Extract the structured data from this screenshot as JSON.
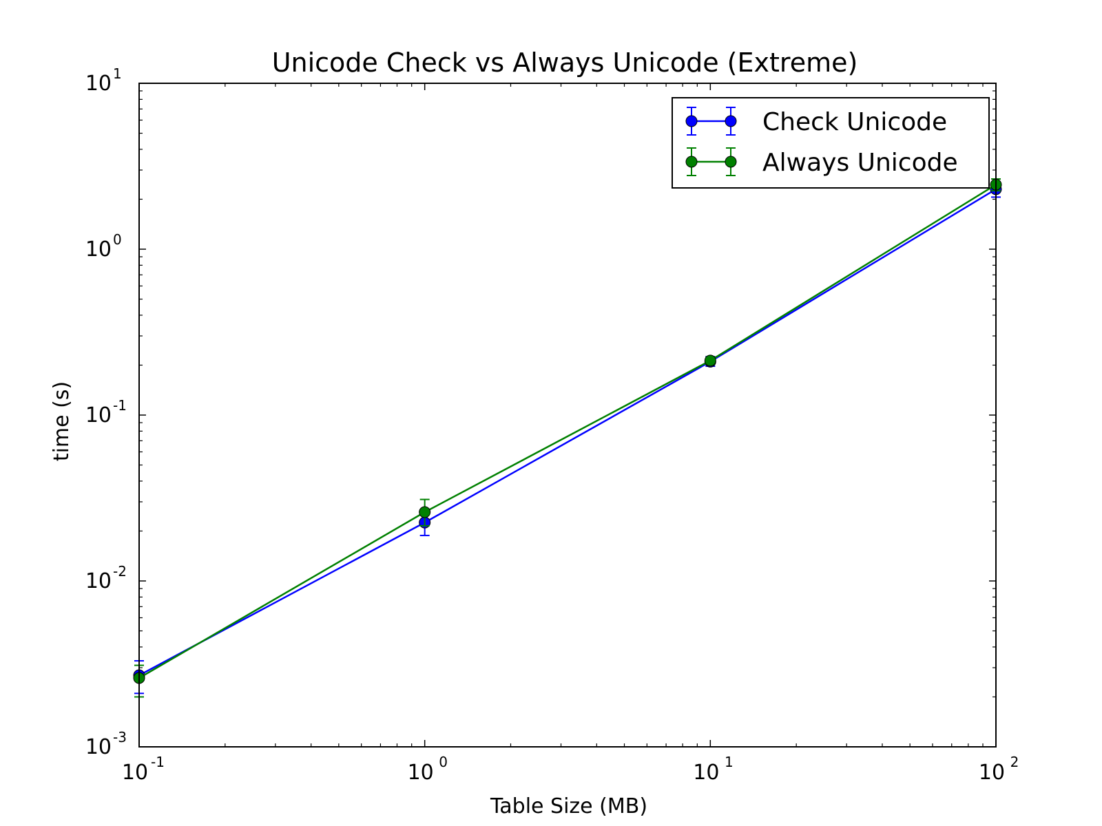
{
  "chart_data": {
    "type": "line",
    "title": "Unicode Check vs Always Unicode (Extreme)",
    "xlabel": "Table Size (MB)",
    "ylabel": "time (s)",
    "xscale": "log",
    "yscale": "log",
    "xlim": [
      0.1,
      100
    ],
    "ylim": [
      0.001,
      10
    ],
    "x_ticks": [
      {
        "value": 0.1,
        "base": "10",
        "exp": "-1"
      },
      {
        "value": 1,
        "base": "10",
        "exp": "0"
      },
      {
        "value": 10,
        "base": "10",
        "exp": "1"
      },
      {
        "value": 100,
        "base": "10",
        "exp": "2"
      }
    ],
    "y_ticks": [
      {
        "value": 0.001,
        "base": "10",
        "exp": "-3"
      },
      {
        "value": 0.01,
        "base": "10",
        "exp": "-2"
      },
      {
        "value": 0.1,
        "base": "10",
        "exp": "-1"
      },
      {
        "value": 1,
        "base": "10",
        "exp": "0"
      },
      {
        "value": 10,
        "base": "10",
        "exp": "1"
      }
    ],
    "grid": false,
    "legend_position": "upper-right",
    "series": [
      {
        "name": "Check Unicode",
        "color": "#0000ff",
        "x": [
          0.1,
          1,
          10,
          100
        ],
        "y": [
          0.0027,
          0.0225,
          0.21,
          2.3
        ],
        "yerr_low": [
          0.0021,
          0.0188,
          0.197,
          2.06
        ],
        "yerr_high": [
          0.0033,
          0.0265,
          0.225,
          2.55
        ]
      },
      {
        "name": "Always Unicode",
        "color": "#008000",
        "x": [
          0.1,
          1,
          10,
          100
        ],
        "y": [
          0.0026,
          0.026,
          0.213,
          2.45
        ],
        "yerr_low": [
          0.002,
          0.0215,
          0.202,
          2.25
        ],
        "yerr_high": [
          0.0031,
          0.031,
          0.224,
          2.65
        ]
      }
    ]
  }
}
